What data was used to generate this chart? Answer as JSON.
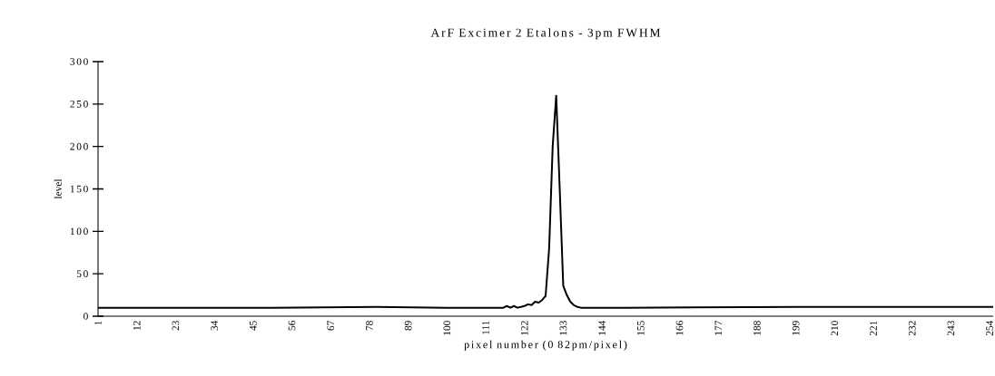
{
  "chart_data": {
    "type": "line",
    "title": "ArF Excimer 2 Etalons - 3pm FWHM",
    "xlabel": "pixel number (0 82pm/pixel)",
    "ylabel": "level",
    "x": [
      1,
      20,
      50,
      80,
      100,
      114,
      116,
      117,
      118,
      119,
      120,
      121,
      122,
      123,
      124,
      125,
      126,
      127,
      128,
      129,
      130,
      131,
      132,
      133,
      134,
      135,
      136,
      137,
      138,
      150,
      200,
      230,
      255
    ],
    "series": [
      {
        "color": "#000000",
        "values": [
          10,
          10,
          10,
          11,
          10,
          10,
          10,
          12,
          10,
          12,
          10,
          11,
          12,
          14,
          13,
          17,
          16,
          19,
          24,
          80,
          200,
          260,
          150,
          36,
          25,
          17,
          13,
          11,
          10,
          10,
          11,
          11,
          11
        ]
      }
    ],
    "xlim": [
      1,
      255
    ],
    "ylim": [
      0,
      300
    ],
    "xticks": [
      1,
      12,
      23,
      34,
      45,
      56,
      67,
      78,
      89,
      100,
      111,
      122,
      133,
      144,
      155,
      166,
      177,
      188,
      199,
      210,
      221,
      232,
      243,
      254
    ],
    "yticks": [
      0,
      50,
      100,
      150,
      200,
      250,
      300
    ],
    "marker": "none",
    "line_style": "solid"
  }
}
